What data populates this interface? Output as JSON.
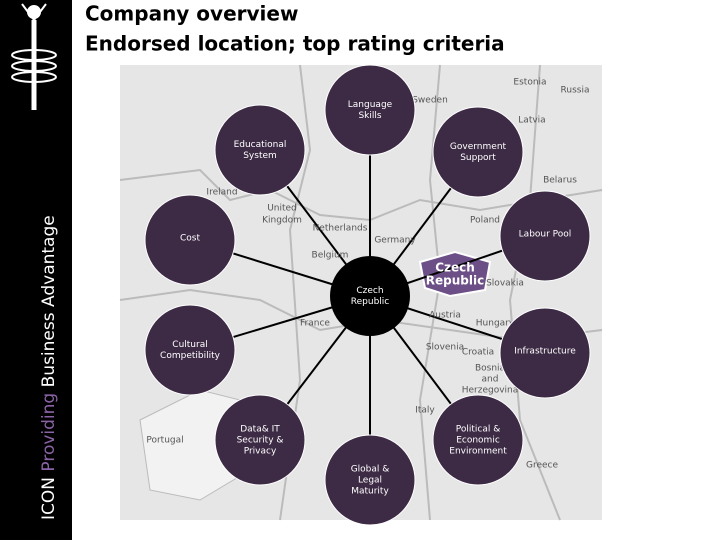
{
  "header": {
    "title_lines": [
      "Company overview",
      "Endorsed location; top rating criteria"
    ]
  },
  "sidebar": {
    "brand": "ICON",
    "tagline_highlight": "Providing",
    "tagline_rest": "Business Advantage"
  },
  "center": {
    "lines": [
      "Czech",
      "Republic"
    ]
  },
  "nodes": [
    {
      "lines": [
        "Language",
        "Skills"
      ]
    },
    {
      "lines": [
        "Educational",
        "System"
      ]
    },
    {
      "lines": [
        "Government",
        "Support"
      ]
    },
    {
      "lines": [
        "Cost"
      ]
    },
    {
      "lines": [
        "Labour Pool"
      ]
    },
    {
      "lines": [
        "Cultural",
        "Competibility"
      ]
    },
    {
      "lines": [
        "Infrastructure"
      ]
    },
    {
      "lines": [
        "Data& IT",
        "Security &",
        "Privacy"
      ]
    },
    {
      "lines": [
        "Political &",
        "Economic",
        "Environment"
      ]
    },
    {
      "lines": [
        "Global &",
        "Legal",
        "Maturity"
      ]
    }
  ],
  "map": {
    "highlight_lines": [
      "Czech",
      "Republic"
    ],
    "labels": [
      "Estonia",
      "Russia",
      "Sweden",
      "Latvia",
      "Belarus",
      "Ireland",
      "United",
      "Kingdom",
      "Netherlands",
      "Germany",
      "Poland",
      "Belgium",
      "Slovakia",
      "Austria",
      "Hungary",
      "France",
      "Slovenia",
      "Croatia",
      "Bosnia",
      "and",
      "Herzegovina",
      "Italy",
      "Portugal",
      "Greece"
    ]
  }
}
